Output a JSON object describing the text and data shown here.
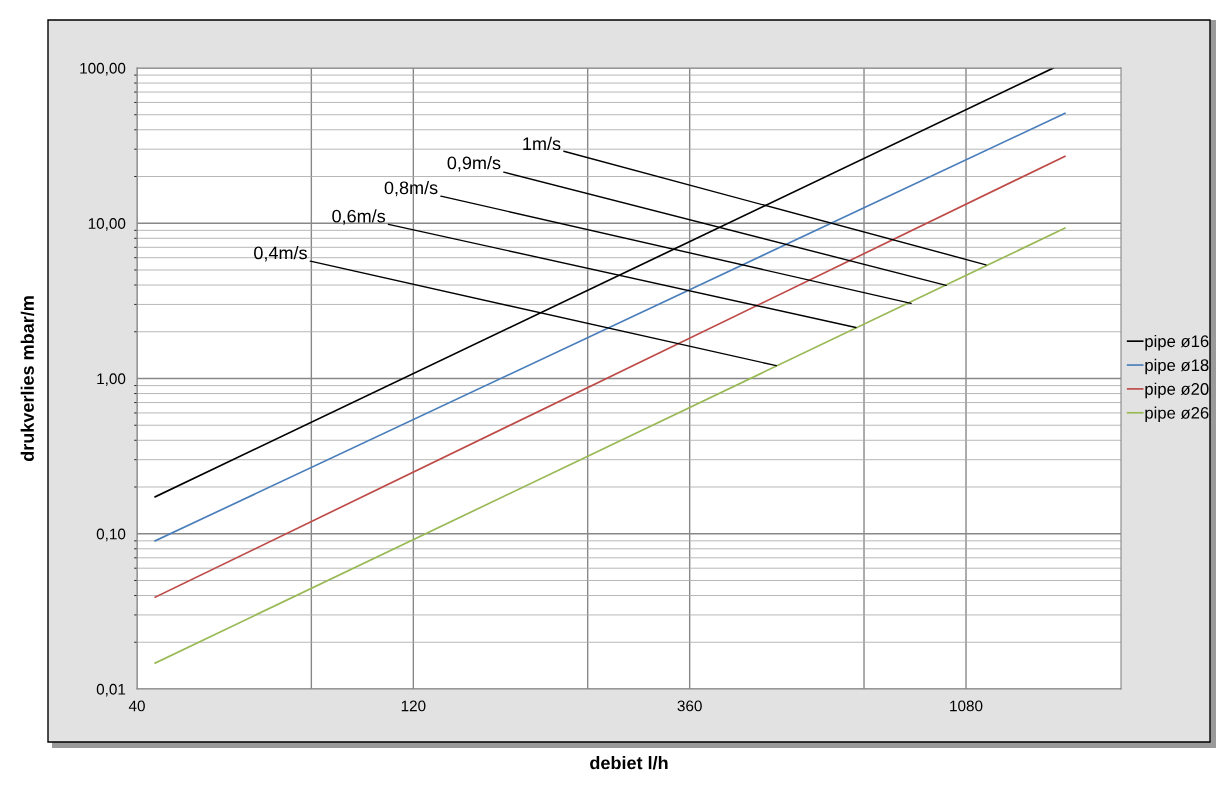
{
  "chart_data": {
    "type": "line",
    "xlabel": "debiet l/h",
    "ylabel": "drukverlies mbar/m",
    "log": "xy",
    "grid": true,
    "legend": "right",
    "marker": "none",
    "line_style": "solid",
    "series": [
      {
        "name": "pipe ø16",
        "color": "#000000",
        "x": [
          43,
          1528
        ],
        "values": [
          0.173,
          100
        ]
      },
      {
        "name": "pipe ø18",
        "color": "#4a7ebb",
        "x": [
          43,
          1600
        ],
        "values": [
          0.09,
          51
        ]
      },
      {
        "name": "pipe ø20",
        "color": "#be4b48",
        "x": [
          43,
          1600
        ],
        "values": [
          0.039,
          27
        ]
      },
      {
        "name": "pipe ø26",
        "color": "#98b954",
        "x": [
          43,
          1600
        ],
        "values": [
          0.0147,
          9.3
        ]
      }
    ],
    "xlim": [
      40,
      2000
    ],
    "xticks": [
      40,
      {
        "value": 80,
        "label": null
      },
      120,
      {
        "value": 240,
        "label": null
      },
      360,
      {
        "value": 720,
        "label": null
      },
      1080
    ],
    "ylim": [
      0.01,
      100
    ],
    "yticks": [
      {
        "value": 0.01,
        "label": "0,01"
      },
      {
        "value": 0.1,
        "label": "0,10"
      },
      {
        "value": 1,
        "label": "1,00"
      },
      {
        "value": 10,
        "label": "10,00"
      },
      {
        "value": 100,
        "label": "100,00"
      }
    ],
    "annotations": [
      {
        "text": "1m/s",
        "x": 1169,
        "y": 5.4
      },
      {
        "text": "0,9m/s",
        "x": 998,
        "y": 3.98
      },
      {
        "text": "0,8m/s",
        "x": 868,
        "y": 3.05
      },
      {
        "text": "0,6m/s",
        "x": 697,
        "y": 2.13
      },
      {
        "text": "0,4m/s",
        "x": 508,
        "y": 1.21
      }
    ]
  }
}
